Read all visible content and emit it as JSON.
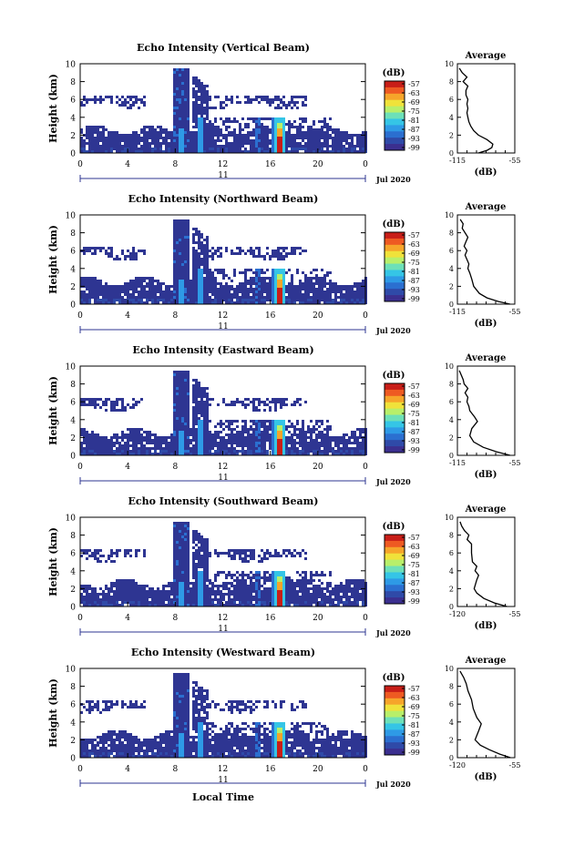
{
  "figure": {
    "time_label": "Local Time",
    "day_label": "11",
    "month_year_label": "Jul 2020"
  },
  "colors": {
    "colorbar": [
      "#3b2f8f",
      "#2f4aa8",
      "#2b6fd0",
      "#2e9ae6",
      "#35c5e6",
      "#6de0b8",
      "#b8ef6a",
      "#f0e23a",
      "#f6a52a",
      "#ee5a22",
      "#c81e18"
    ],
    "cloud": "#2e3592",
    "profile_line": "#000000"
  },
  "chart_data": [
    {
      "type": "heatmap",
      "title": "Echo Intensity (Vertical Beam)",
      "ylabel": "Height (km)",
      "xlim": [
        0,
        24
      ],
      "ylim": [
        0,
        10
      ],
      "x_ticks": [
        "0",
        "4",
        "8",
        "12",
        "16",
        "20",
        "0"
      ],
      "y_ticks": [
        "0",
        "2",
        "4",
        "6",
        "8",
        "10"
      ],
      "colorbar_title": "(dB)",
      "colorbar_ticks": [
        "-57",
        "-63",
        "-69",
        "-75",
        "-81",
        "-87",
        "-93",
        "-99"
      ],
      "profile": {
        "title": "Average",
        "xlabel": "(dB)",
        "xlim": [
          -115,
          -55
        ],
        "x_ticks": [
          "-115",
          "-55"
        ],
        "y_ticks": [
          "0",
          "2",
          "4",
          "6",
          "8",
          "10"
        ],
        "points": [
          [
            -93,
            0
          ],
          [
            -84,
            0.3
          ],
          [
            -79,
            0.6
          ],
          [
            -78,
            1
          ],
          [
            -84,
            1.5
          ],
          [
            -93,
            2
          ],
          [
            -98,
            2.5
          ],
          [
            -101,
            3
          ],
          [
            -103,
            3.5
          ],
          [
            -104,
            4
          ],
          [
            -105,
            4.5
          ],
          [
            -104,
            5
          ],
          [
            -105,
            5.5
          ],
          [
            -104,
            6
          ],
          [
            -106,
            6.5
          ],
          [
            -106,
            7
          ],
          [
            -104,
            7.5
          ],
          [
            -109,
            8
          ],
          [
            -105,
            8.5
          ],
          [
            -110,
            9
          ],
          [
            -113,
            9.5
          ]
        ]
      }
    },
    {
      "type": "heatmap",
      "title": "Echo Intensity (Northward Beam)",
      "ylabel": "Height (km)",
      "xlim": [
        0,
        24
      ],
      "ylim": [
        0,
        10
      ],
      "x_ticks": [
        "0",
        "4",
        "8",
        "12",
        "16",
        "20",
        "0"
      ],
      "y_ticks": [
        "0",
        "2",
        "4",
        "6",
        "8",
        "10"
      ],
      "colorbar_title": "(dB)",
      "colorbar_ticks": [
        "-57",
        "-63",
        "-69",
        "-75",
        "-81",
        "-87",
        "-93",
        "-99"
      ],
      "profile": {
        "title": "Average",
        "xlabel": "(dB)",
        "xlim": [
          -115,
          -55
        ],
        "x_ticks": [
          "-115",
          "-55"
        ],
        "y_ticks": [
          "0",
          "2",
          "4",
          "6",
          "8",
          "10"
        ],
        "points": [
          [
            -60,
            0
          ],
          [
            -72,
            0.3
          ],
          [
            -84,
            0.7
          ],
          [
            -92,
            1.2
          ],
          [
            -98,
            2
          ],
          [
            -100,
            2.8
          ],
          [
            -102,
            3.5
          ],
          [
            -104,
            4
          ],
          [
            -103,
            4.5
          ],
          [
            -105,
            5
          ],
          [
            -107,
            5.5
          ],
          [
            -105,
            6
          ],
          [
            -108,
            6.5
          ],
          [
            -106,
            7
          ],
          [
            -104,
            7.5
          ],
          [
            -107,
            8
          ],
          [
            -110,
            8.5
          ],
          [
            -109,
            9
          ],
          [
            -112,
            9.5
          ]
        ]
      }
    },
    {
      "type": "heatmap",
      "title": "Echo Intensity (Eastward Beam)",
      "ylabel": "Height (km)",
      "xlim": [
        0,
        24
      ],
      "ylim": [
        0,
        10
      ],
      "x_ticks": [
        "0",
        "4",
        "8",
        "12",
        "16",
        "20",
        "0"
      ],
      "y_ticks": [
        "0",
        "2",
        "4",
        "6",
        "8",
        "10"
      ],
      "colorbar_title": "(dB)",
      "colorbar_ticks": [
        "-57",
        "-63",
        "-69",
        "-75",
        "-81",
        "-87",
        "-93",
        "-99"
      ],
      "profile": {
        "title": "Average",
        "xlabel": "(dB)",
        "xlim": [
          -115,
          -55
        ],
        "x_ticks": [
          "-115",
          "-55"
        ],
        "y_ticks": [
          "0",
          "2",
          "4",
          "6",
          "8",
          "10"
        ],
        "points": [
          [
            -60,
            0
          ],
          [
            -74,
            0.4
          ],
          [
            -88,
            0.9
          ],
          [
            -98,
            1.5
          ],
          [
            -102,
            2.2
          ],
          [
            -100,
            3
          ],
          [
            -94,
            3.8
          ],
          [
            -97,
            4.3
          ],
          [
            -102,
            5
          ],
          [
            -103,
            5.5
          ],
          [
            -105,
            6
          ],
          [
            -104,
            6.5
          ],
          [
            -107,
            7
          ],
          [
            -104,
            7.5
          ],
          [
            -108,
            8
          ],
          [
            -109,
            8.5
          ],
          [
            -111,
            9
          ],
          [
            -113,
            9.5
          ]
        ]
      }
    },
    {
      "type": "heatmap",
      "title": "Echo Intensity (Southward Beam)",
      "ylabel": "Height (km)",
      "xlim": [
        0,
        24
      ],
      "ylim": [
        0,
        10
      ],
      "x_ticks": [
        "0",
        "4",
        "8",
        "12",
        "16",
        "20",
        "0"
      ],
      "y_ticks": [
        "0",
        "2",
        "4",
        "6",
        "8",
        "10"
      ],
      "colorbar_title": "(dB)",
      "colorbar_ticks": [
        "-57",
        "-63",
        "-69",
        "-75",
        "-81",
        "-87",
        "-93",
        "-99"
      ],
      "profile": {
        "title": "Average",
        "xlabel": "(dB)",
        "xlim": [
          -120,
          -55
        ],
        "x_ticks": [
          "-120",
          "-55"
        ],
        "y_ticks": [
          "0",
          "2",
          "4",
          "6",
          "8",
          "10"
        ],
        "points": [
          [
            -64,
            0
          ],
          [
            -78,
            0.4
          ],
          [
            -90,
            0.9
          ],
          [
            -98,
            1.5
          ],
          [
            -101,
            2
          ],
          [
            -98,
            3
          ],
          [
            -96,
            3.5
          ],
          [
            -100,
            4
          ],
          [
            -98,
            4.5
          ],
          [
            -103,
            5
          ],
          [
            -104,
            6
          ],
          [
            -104,
            7
          ],
          [
            -109,
            7.5
          ],
          [
            -107,
            8
          ],
          [
            -112,
            8.5
          ],
          [
            -115,
            9
          ],
          [
            -117,
            9.5
          ]
        ]
      }
    },
    {
      "type": "heatmap",
      "title": "Echo Intensity (Westward Beam)",
      "ylabel": "Height (km)",
      "xlim": [
        0,
        24
      ],
      "ylim": [
        0,
        10
      ],
      "x_ticks": [
        "0",
        "4",
        "8",
        "12",
        "16",
        "20",
        "0"
      ],
      "y_ticks": [
        "0",
        "2",
        "4",
        "6",
        "8",
        "10"
      ],
      "colorbar_title": "(dB)",
      "colorbar_ticks": [
        "-57",
        "-63",
        "-69",
        "-75",
        "-81",
        "-87",
        "-93",
        "-99"
      ],
      "profile": {
        "title": "Average",
        "xlabel": "(dB)",
        "xlim": [
          -120,
          -55
        ],
        "x_ticks": [
          "-120",
          "-55"
        ],
        "y_ticks": [
          "0",
          "2",
          "4",
          "6",
          "8",
          "10"
        ],
        "points": [
          [
            -60,
            0
          ],
          [
            -72,
            0.4
          ],
          [
            -84,
            0.9
          ],
          [
            -94,
            1.4
          ],
          [
            -100,
            2
          ],
          [
            -96,
            3
          ],
          [
            -93,
            3.8
          ],
          [
            -98,
            4.5
          ],
          [
            -102,
            5.5
          ],
          [
            -104,
            6.5
          ],
          [
            -108,
            7.5
          ],
          [
            -110,
            8.3
          ],
          [
            -113,
            9
          ],
          [
            -117,
            9.7
          ]
        ]
      }
    }
  ]
}
